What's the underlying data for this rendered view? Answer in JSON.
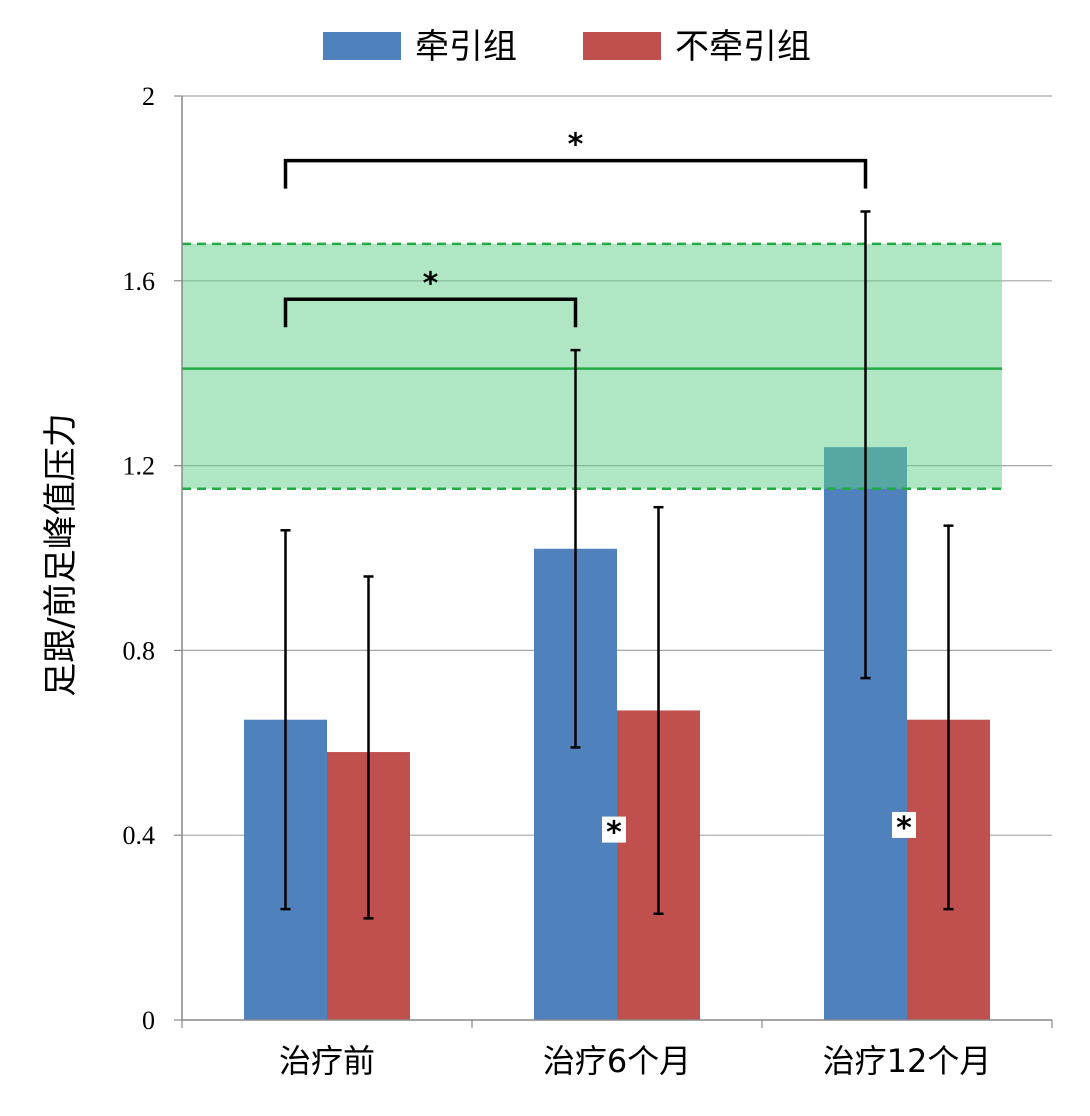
{
  "chart_data": {
    "type": "bar",
    "categories": [
      "治疗前",
      "治疗6个月",
      "治疗12个月"
    ],
    "series": [
      {
        "name": "牵引组",
        "color": "#4f81bd",
        "values": [
          0.65,
          1.02,
          1.24
        ],
        "err_low": [
          0.24,
          0.59,
          0.74
        ],
        "err_high": [
          1.06,
          1.45,
          1.75
        ]
      },
      {
        "name": "不牵引组",
        "color": "#c0504d",
        "values": [
          0.58,
          0.67,
          0.65
        ],
        "err_low": [
          0.22,
          0.23,
          0.24
        ],
        "err_high": [
          0.96,
          1.11,
          1.07
        ]
      }
    ],
    "ylabel": "足跟/前足峰值压力",
    "xlabel": "",
    "ylim": [
      0,
      2
    ],
    "yticks": [
      "0",
      "0.4",
      "0.8",
      "1.2",
      "1.6",
      "2"
    ],
    "grid": true,
    "legend_position": "top",
    "reference_band": {
      "low": 1.15,
      "high": 1.68,
      "mean": 1.41,
      "color": "#5fd08a",
      "line_color": "#22aa44"
    },
    "significance_brackets": [
      {
        "from": "治疗前",
        "to": "治疗6个月",
        "height": 1.56,
        "label": "*"
      },
      {
        "from": "治疗前",
        "to": "治疗12个月",
        "height": 1.86,
        "label": "*"
      }
    ],
    "between_group_markers": [
      {
        "category": "治疗6个月",
        "y": 0.41,
        "label": "*"
      },
      {
        "category": "治疗12个月",
        "y": 0.42,
        "label": "*"
      }
    ]
  }
}
